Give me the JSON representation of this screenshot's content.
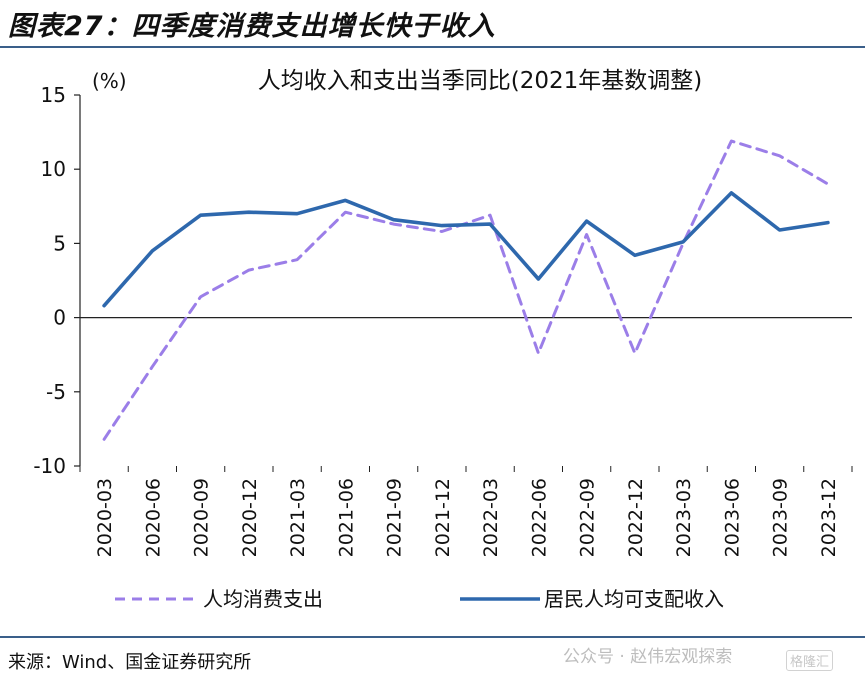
{
  "header": {
    "title": "图表27：四季度消费支出增长快于收入"
  },
  "chart_data": {
    "type": "line",
    "title": "人均收入和支出当季同比(2021年基数调整)",
    "ylabel": "(%)",
    "xlabel": "",
    "ylim": [
      -10,
      15
    ],
    "yticks": [
      "15",
      "10",
      "5",
      "0",
      "-5",
      "-10"
    ],
    "categories": [
      "2020-03",
      "2020-06",
      "2020-09",
      "2020-12",
      "2021-03",
      "2021-06",
      "2021-09",
      "2021-12",
      "2022-03",
      "2022-06",
      "2022-09",
      "2022-12",
      "2023-03",
      "2023-06",
      "2023-09",
      "2023-12"
    ],
    "series": [
      {
        "name": "人均消费支出",
        "style": "dashed",
        "color": "#9b7ee8",
        "values": [
          -8.2,
          -3.3,
          1.4,
          3.2,
          3.9,
          7.1,
          6.3,
          5.8,
          6.9,
          -2.4,
          5.6,
          -2.4,
          5.0,
          11.9,
          10.9,
          9.0
        ]
      },
      {
        "name": "居民人均可支配收入",
        "style": "solid",
        "color": "#2e68ad",
        "values": [
          0.8,
          4.5,
          6.9,
          7.1,
          7.0,
          7.9,
          6.6,
          6.2,
          6.3,
          2.6,
          6.5,
          4.2,
          5.1,
          8.4,
          5.9,
          6.4
        ]
      }
    ],
    "grid": false,
    "legend_position": "bottom"
  },
  "footer": {
    "source": "来源：Wind、国金证券研究所",
    "watermark": "公众号 · 赵伟宏观探索",
    "watermark_badge": "格隆汇"
  }
}
